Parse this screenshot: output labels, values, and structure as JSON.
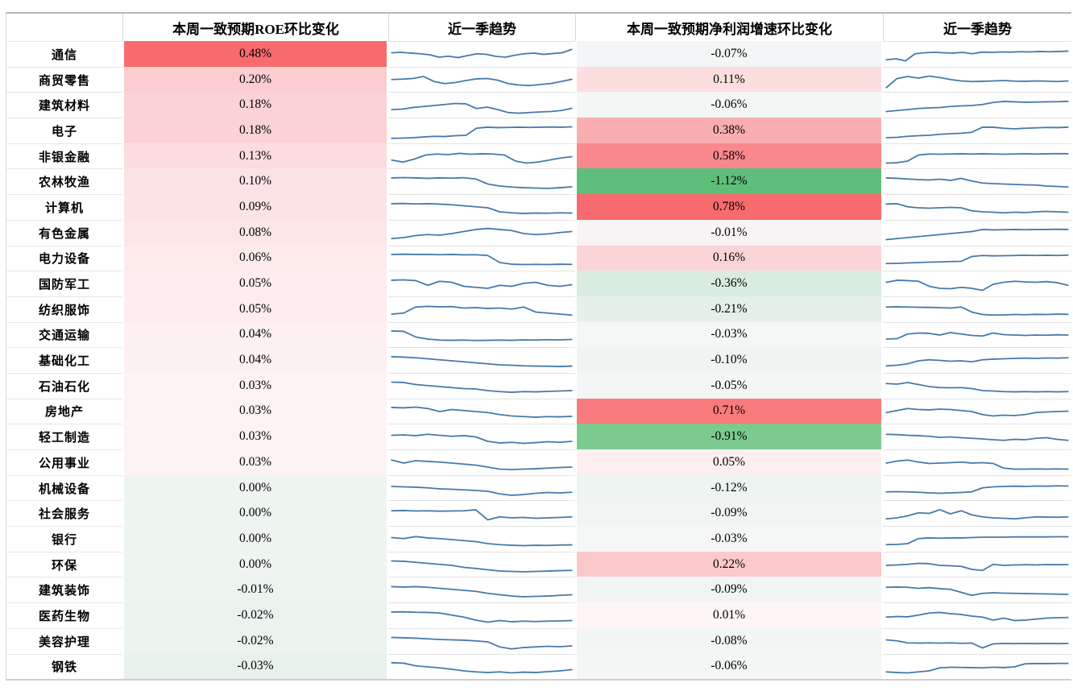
{
  "colors": {
    "sparkline": "#4679ab",
    "strong_red": "#f76b6e",
    "strong_green": "#5fbe7a",
    "row_border": "#e3e3e3",
    "table_border": "#b7b7b7"
  },
  "chart_data": {
    "type": "table",
    "headers": {
      "industry": "",
      "roe_change": "本周一致预期ROE环比变化",
      "roe_trend": "近一季趋势",
      "np_change": "本周一致预期净利润增速环比变化",
      "np_trend": "近一季趋势"
    },
    "rows": [
      {
        "industry": "通信",
        "roe": "0.48%",
        "roe_color": "#f76b6e",
        "np": "-0.07%",
        "np_color": "#f3f6f6",
        "roe_trend": [
          60,
          62,
          58,
          55,
          50,
          38,
          43,
          36,
          46,
          55,
          52,
          42,
          38,
          48,
          55,
          58,
          52,
          56,
          60,
          76
        ],
        "np_trend": [
          25,
          30,
          20,
          55,
          60,
          62,
          60,
          58,
          62,
          55,
          63,
          62,
          64,
          63,
          65,
          64,
          66,
          65,
          66,
          68
        ]
      },
      {
        "industry": "商贸零售",
        "roe": "0.20%",
        "roe_color": "#fbcdd1",
        "np": "0.11%",
        "np_color": "#fcdee0",
        "roe_trend": [
          55,
          57,
          60,
          70,
          45,
          35,
          40,
          50,
          58,
          60,
          52,
          35,
          28,
          25,
          30,
          35,
          45,
          56
        ],
        "np_trend": [
          15,
          60,
          70,
          62,
          72,
          65,
          55,
          48,
          45,
          46,
          48,
          50,
          47,
          46,
          48,
          47,
          45,
          48
        ]
      },
      {
        "industry": "建筑材料",
        "roe": "0.18%",
        "roe_color": "#fbd2d5",
        "np": "-0.06%",
        "np_color": "#f3f6f5",
        "roe_trend": [
          30,
          32,
          40,
          45,
          50,
          55,
          60,
          58,
          35,
          42,
          30,
          15,
          12,
          15,
          18,
          20,
          25,
          36
        ],
        "np_trend": [
          20,
          25,
          30,
          35,
          38,
          40,
          45,
          48,
          50,
          55,
          65,
          70,
          68,
          66,
          67,
          68,
          69,
          70
        ]
      },
      {
        "industry": "电子",
        "roe": "0.18%",
        "roe_color": "#fbd2d5",
        "np": "0.38%",
        "np_color": "#f9aeb1",
        "roe_trend": [
          15,
          16,
          18,
          22,
          25,
          24,
          28,
          30,
          65,
          70,
          68,
          69,
          70,
          69,
          70,
          71,
          70,
          72
        ],
        "np_trend": [
          18,
          20,
          25,
          28,
          30,
          35,
          38,
          40,
          45,
          70,
          70,
          65,
          62,
          65,
          67,
          69,
          68,
          70
        ]
      },
      {
        "industry": "非银金融",
        "roe": "0.13%",
        "roe_color": "#fcdcde",
        "np": "0.58%",
        "np_color": "#f8888c",
        "roe_trend": [
          35,
          25,
          40,
          60,
          65,
          62,
          68,
          64,
          66,
          65,
          60,
          30,
          20,
          25,
          35,
          45,
          52
        ],
        "np_trend": [
          20,
          22,
          30,
          60,
          65,
          64,
          65,
          66,
          65,
          66,
          65,
          64,
          65,
          66,
          65,
          66,
          67,
          66
        ]
      },
      {
        "industry": "农林牧渔",
        "roe": "0.10%",
        "roe_color": "#fce2e4",
        "np": "-1.12%",
        "np_color": "#5fbe7a",
        "roe_trend": [
          70,
          72,
          70,
          68,
          70,
          69,
          71,
          65,
          40,
          30,
          25,
          22,
          20,
          18,
          22,
          26
        ],
        "np_trend": [
          70,
          68,
          65,
          62,
          60,
          64,
          58,
          68,
          55,
          45,
          42,
          40,
          38,
          36,
          35,
          30,
          28,
          25
        ]
      },
      {
        "industry": "计算机",
        "roe": "0.09%",
        "roe_color": "#fce4e6",
        "np": "0.78%",
        "np_color": "#f76b6e",
        "roe_trend": [
          70,
          71,
          69,
          70,
          68,
          65,
          60,
          55,
          50,
          30,
          25,
          22,
          24,
          23,
          25,
          24
        ],
        "np_trend": [
          68,
          70,
          55,
          50,
          48,
          50,
          52,
          50,
          35,
          30,
          28,
          25,
          28,
          26,
          30,
          32,
          30,
          28
        ]
      },
      {
        "industry": "有色金属",
        "roe": "0.08%",
        "roe_color": "#fde6e7",
        "np": "-0.01%",
        "np_color": "#f8f4f5",
        "roe_trend": [
          25,
          30,
          40,
          45,
          42,
          50,
          60,
          70,
          75,
          70,
          65,
          50,
          45,
          48,
          55,
          60
        ],
        "np_trend": [
          20,
          25,
          30,
          35,
          40,
          45,
          50,
          55,
          60,
          70,
          68,
          69,
          70,
          69,
          70,
          70,
          71,
          70
        ]
      },
      {
        "industry": "电力设备",
        "roe": "0.06%",
        "roe_color": "#fdebec",
        "np": "0.16%",
        "np_color": "#fbd4d7",
        "roe_trend": [
          70,
          71,
          70,
          70,
          69,
          70,
          68,
          69,
          65,
          30,
          22,
          20,
          21,
          20,
          22,
          21
        ],
        "np_trend": [
          25,
          26,
          28,
          30,
          32,
          33,
          35,
          36,
          60,
          65,
          63,
          64,
          65,
          66,
          65,
          66,
          65,
          67
        ]
      },
      {
        "industry": "国防军工",
        "roe": "0.05%",
        "roe_color": "#fdedee",
        "np": "-0.36%",
        "np_color": "#d9ecdf",
        "roe_trend": [
          70,
          72,
          68,
          45,
          65,
          60,
          40,
          35,
          30,
          45,
          40,
          55,
          60,
          45,
          40,
          48
        ],
        "np_trend": [
          60,
          70,
          68,
          65,
          40,
          30,
          28,
          35,
          30,
          20,
          50,
          60,
          65,
          62,
          60,
          63,
          58,
          45
        ]
      },
      {
        "industry": "纺织服饰",
        "roe": "0.05%",
        "roe_color": "#fdedee",
        "np": "-0.21%",
        "np_color": "#e4f0e8",
        "roe_trend": [
          30,
          35,
          65,
          68,
          66,
          67,
          60,
          62,
          58,
          60,
          55,
          65,
          40,
          35,
          30,
          25
        ],
        "np_trend": [
          65,
          66,
          65,
          64,
          63,
          62,
          60,
          65,
          40,
          28,
          25,
          26,
          28,
          27,
          29,
          28,
          30,
          29
        ]
      },
      {
        "industry": "交通运输",
        "roe": "0.04%",
        "roe_color": "#fdf0f1",
        "np": "-0.03%",
        "np_color": "#f5f7f6",
        "roe_trend": [
          70,
          68,
          40,
          30,
          25,
          24,
          25,
          23,
          24,
          25,
          24,
          26,
          25,
          27,
          26,
          28
        ],
        "np_trend": [
          30,
          32,
          55,
          60,
          58,
          50,
          62,
          55,
          48,
          45,
          60,
          52,
          50,
          48,
          50,
          49,
          51,
          50
        ]
      },
      {
        "industry": "基础化工",
        "roe": "0.04%",
        "roe_color": "#fdf0f1",
        "np": "-0.10%",
        "np_color": "#eff4f2",
        "roe_trend": [
          70,
          68,
          65,
          60,
          55,
          50,
          45,
          40,
          35,
          30,
          28,
          25,
          24,
          23,
          22,
          24
        ],
        "np_trend": [
          25,
          28,
          35,
          50,
          55,
          52,
          48,
          50,
          45,
          55,
          58,
          60,
          62,
          63,
          62,
          64,
          63,
          65
        ]
      },
      {
        "industry": "石油石化",
        "roe": "0.03%",
        "roe_color": "#fef3f3",
        "np": "-0.05%",
        "np_color": "#f4f6f5",
        "roe_trend": [
          72,
          70,
          60,
          55,
          50,
          45,
          40,
          38,
          30,
          25,
          22,
          25,
          24,
          26,
          28,
          30
        ],
        "np_trend": [
          65,
          62,
          70,
          60,
          50,
          45,
          44,
          45,
          40,
          30,
          28,
          25,
          24,
          25,
          24,
          25,
          24,
          25
        ]
      },
      {
        "industry": "房地产",
        "roe": "0.03%",
        "roe_color": "#fef3f3",
        "np": "0.71%",
        "np_color": "#f87a7d",
        "roe_trend": [
          70,
          68,
          72,
          65,
          50,
          60,
          55,
          50,
          45,
          35,
          28,
          25,
          22,
          25,
          24,
          26
        ],
        "np_trend": [
          45,
          55,
          65,
          60,
          58,
          62,
          60,
          55,
          50,
          35,
          28,
          32,
          30,
          35,
          45,
          48,
          50,
          52
        ]
      },
      {
        "industry": "轻工制造",
        "roe": "0.03%",
        "roe_color": "#fef3f3",
        "np": "-0.91%",
        "np_color": "#7cca8e",
        "roe_trend": [
          60,
          62,
          58,
          65,
          60,
          55,
          58,
          52,
          30,
          22,
          25,
          20,
          24,
          28,
          25,
          30
        ],
        "np_trend": [
          65,
          63,
          60,
          58,
          55,
          50,
          52,
          48,
          45,
          42,
          38,
          35,
          40,
          38,
          45,
          48,
          40,
          35
        ]
      },
      {
        "industry": "公用事业",
        "roe": "0.03%",
        "roe_color": "#fef3f3",
        "np": "0.05%",
        "np_color": "#fdeff0",
        "roe_trend": [
          65,
          50,
          62,
          58,
          55,
          50,
          45,
          40,
          30,
          20,
          18,
          20,
          22,
          25,
          28,
          30
        ],
        "np_trend": [
          50,
          60,
          65,
          55,
          48,
          50,
          52,
          55,
          50,
          52,
          48,
          25,
          20,
          20,
          21,
          20,
          21,
          20
        ]
      },
      {
        "industry": "机械设备",
        "roe": "0.00%",
        "roe_color": "#eef5f1",
        "np": "-0.12%",
        "np_color": "#edf4f1",
        "roe_trend": [
          62,
          60,
          58,
          55,
          50,
          48,
          45,
          42,
          38,
          25,
          18,
          22,
          28,
          32,
          30,
          33
        ],
        "np_trend": [
          35,
          36,
          35,
          33,
          30,
          28,
          30,
          32,
          35,
          55,
          60,
          62,
          63,
          62,
          64,
          63,
          65,
          64
        ]
      },
      {
        "industry": "社会服务",
        "roe": "0.00%",
        "roe_color": "#eef5f1",
        "np": "-0.09%",
        "np_color": "#f0f5f3",
        "roe_trend": [
          65,
          66,
          64,
          65,
          63,
          64,
          65,
          70,
          20,
          35,
          30,
          32,
          28,
          30,
          32,
          35
        ],
        "np_trend": [
          25,
          30,
          40,
          55,
          52,
          70,
          50,
          65,
          45,
          35,
          30,
          28,
          25,
          30,
          35,
          34,
          33,
          35
        ]
      },
      {
        "industry": "银行",
        "roe": "0.00%",
        "roe_color": "#eef5f1",
        "np": "-0.03%",
        "np_color": "#f5f7f6",
        "roe_trend": [
          60,
          55,
          65,
          58,
          55,
          50,
          45,
          40,
          30,
          25,
          22,
          20,
          22,
          21,
          23,
          24
        ],
        "np_trend": [
          25,
          26,
          30,
          55,
          58,
          57,
          58,
          58,
          60,
          62,
          62,
          62,
          63,
          63,
          63,
          63,
          64,
          64
        ]
      },
      {
        "industry": "环保",
        "roe": "0.00%",
        "roe_color": "#eef5f1",
        "np": "0.22%",
        "np_color": "#fbc9cc",
        "roe_trend": [
          72,
          70,
          65,
          60,
          55,
          50,
          40,
          35,
          28,
          22,
          20,
          18,
          20,
          22,
          24,
          25
        ],
        "np_trend": [
          50,
          52,
          55,
          60,
          58,
          50,
          48,
          45,
          30,
          25,
          55,
          50,
          52,
          53,
          52,
          54,
          53,
          54
        ]
      },
      {
        "industry": "建筑装饰",
        "roe": "-0.01%",
        "roe_color": "#ecf4ef",
        "np": "-0.09%",
        "np_color": "#f0f5f3",
        "roe_trend": [
          68,
          66,
          68,
          65,
          60,
          55,
          50,
          45,
          35,
          28,
          22,
          18,
          20,
          22,
          25,
          28
        ],
        "np_trend": [
          65,
          66,
          65,
          60,
          63,
          58,
          55,
          40,
          25,
          35,
          38,
          36,
          35,
          34,
          33,
          32,
          31,
          30
        ]
      },
      {
        "industry": "医药生物",
        "roe": "-0.02%",
        "roe_color": "#eaf3ee",
        "np": "0.01%",
        "np_color": "#fef5f5",
        "roe_trend": [
          70,
          71,
          69,
          68,
          65,
          55,
          45,
          30,
          20,
          28,
          22,
          25,
          23,
          25,
          26,
          28
        ],
        "np_trend": [
          45,
          48,
          46,
          55,
          65,
          68,
          62,
          58,
          50,
          45,
          30,
          40,
          28,
          30,
          35,
          40,
          42,
          43
        ]
      },
      {
        "industry": "美容护理",
        "roe": "-0.02%",
        "roe_color": "#eaf3ee",
        "np": "-0.08%",
        "np_color": "#f1f5f3",
        "roe_trend": [
          72,
          70,
          68,
          65,
          62,
          60,
          58,
          55,
          50,
          25,
          15,
          22,
          25,
          28,
          26,
          30
        ],
        "np_trend": [
          60,
          55,
          45,
          44,
          45,
          44,
          45,
          43,
          44,
          20,
          40,
          42,
          41,
          42,
          41,
          42,
          41,
          42
        ]
      },
      {
        "industry": "钢铁",
        "roe": "-0.03%",
        "roe_color": "#e8f2ec",
        "np": "-0.06%",
        "np_color": "#f3f6f5",
        "roe_trend": [
          70,
          68,
          55,
          50,
          45,
          38,
          30,
          25,
          22,
          25,
          20,
          24,
          22,
          26,
          30,
          36
        ],
        "np_trend": [
          25,
          22,
          20,
          25,
          30,
          45,
          48,
          47,
          46,
          45,
          48,
          46,
          50,
          65,
          66,
          66,
          67,
          67
        ]
      }
    ]
  }
}
